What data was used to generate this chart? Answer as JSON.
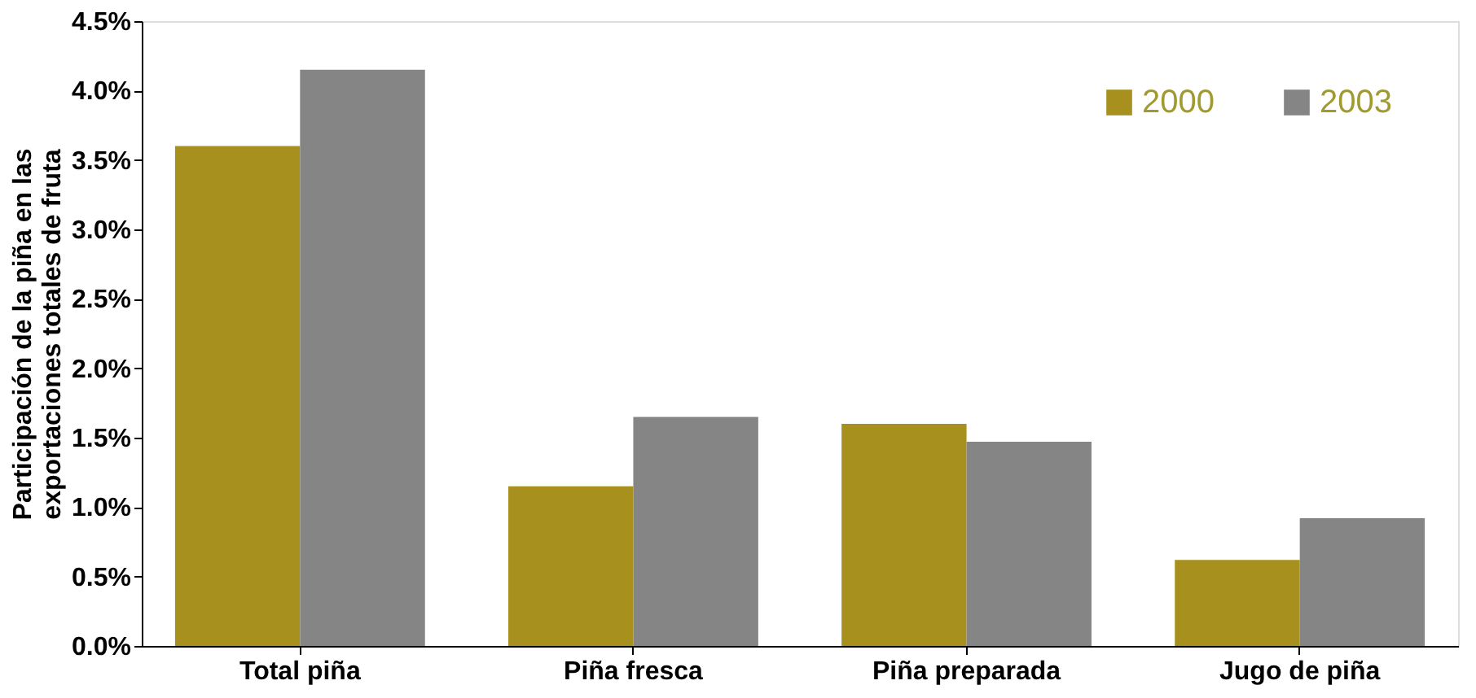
{
  "chart_data": {
    "type": "bar",
    "ylabel": "Participación de la piña en las exportaciones totales de fruta",
    "categories": [
      "Total piña",
      "Piña fresca",
      "Piña preparada",
      "Jugo de piña"
    ],
    "series": [
      {
        "name": "2000",
        "color": "#a8901e",
        "values": [
          3.6,
          1.15,
          1.6,
          0.62
        ]
      },
      {
        "name": "2003",
        "color": "#858585",
        "values": [
          4.15,
          1.65,
          1.47,
          0.92
        ]
      }
    ],
    "ylim": [
      0,
      4.5
    ],
    "yticks": [
      {
        "value": 0,
        "label": "0.0%"
      },
      {
        "value": 0.5,
        "label": "0.5%"
      },
      {
        "value": 1,
        "label": "1.0%"
      },
      {
        "value": 1.5,
        "label": "1.5%"
      },
      {
        "value": 2,
        "label": "2.0%"
      },
      {
        "value": 2.5,
        "label": "2.5%"
      },
      {
        "value": 3,
        "label": "3.0%"
      },
      {
        "value": 3.5,
        "label": "3.5%"
      },
      {
        "value": 4,
        "label": "4.0%"
      },
      {
        "value": 4.5,
        "label": "4.5%"
      }
    ],
    "grid": false,
    "legend": "top right"
  }
}
